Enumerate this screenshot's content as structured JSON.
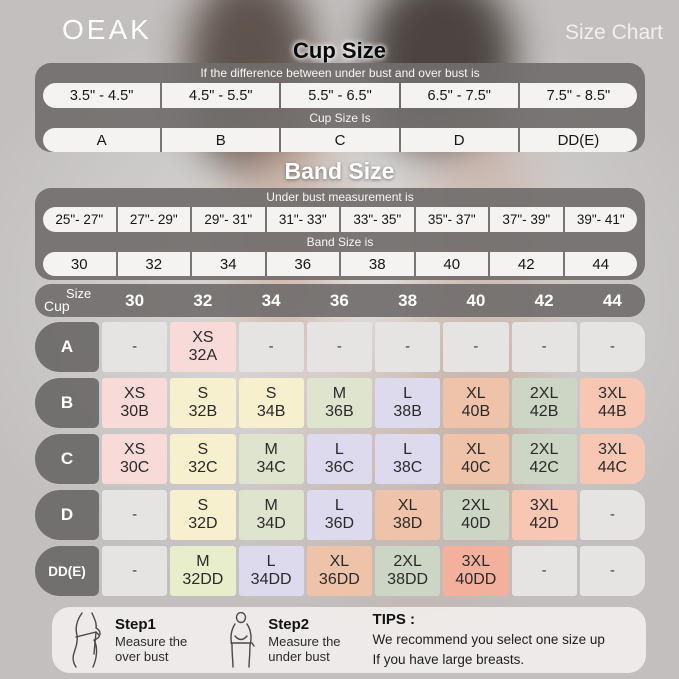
{
  "brand": {
    "logo": "OEAK"
  },
  "header": {
    "title": "Size Chart"
  },
  "cup_section": {
    "heading": "Cup Size",
    "condition_label": "If the  difference between under bust and over bust is",
    "ranges": [
      "3.5\" - 4.5\"",
      "4.5\" - 5.5\"",
      "5.5\" - 6.5\"",
      "6.5\" - 7.5\"",
      "7.5\" - 8.5\""
    ],
    "result_label": "Cup Size Is",
    "cups": [
      "A",
      "B",
      "C",
      "D",
      "DD(E)"
    ]
  },
  "band_section": {
    "heading": "Band Size",
    "condition_label": "Under bust measurement is",
    "ranges": [
      "25\"- 27\"",
      "27\"- 29\"",
      "29\"- 31\"",
      "31\"- 33\"",
      "33\"- 35\"",
      "35\"- 37\"",
      "37\"- 39\"",
      "39\"- 41\""
    ],
    "result_label": "Band Size is",
    "bands": [
      "30",
      "32",
      "34",
      "36",
      "38",
      "40",
      "42",
      "44"
    ]
  },
  "palette": {
    "gray": "#e6e4e3",
    "pink": "#f8dbd8",
    "cream": "#f6f0cf",
    "sage_light": "#dfe4cf",
    "sage_dark": "#cdd6c5",
    "lavender": "#dedaed",
    "peach": "#efc3a9",
    "salmon": "#f7c7b4",
    "salmon_deep": "#f3b19d",
    "palegreen": "#e8edcb",
    "panel_gray": "#716e6d",
    "accent_white": "#f3efee"
  },
  "matrix": {
    "corner_top": "Size",
    "corner_bottom": "Cup",
    "columns": [
      "30",
      "32",
      "34",
      "36",
      "38",
      "40",
      "42",
      "44"
    ],
    "rows": [
      {
        "cup": "A",
        "cells": [
          {
            "size": "-",
            "code": "",
            "bg": "#e6e4e3"
          },
          {
            "size": "XS",
            "code": "32A",
            "bg": "#f8dbd8"
          },
          {
            "size": "-",
            "code": "",
            "bg": "#e6e4e3"
          },
          {
            "size": "-",
            "code": "",
            "bg": "#e6e4e3"
          },
          {
            "size": "-",
            "code": "",
            "bg": "#e6e4e3"
          },
          {
            "size": "-",
            "code": "",
            "bg": "#e6e4e3"
          },
          {
            "size": "-",
            "code": "",
            "bg": "#e6e4e3"
          },
          {
            "size": "-",
            "code": "",
            "bg": "#e6e4e3"
          }
        ]
      },
      {
        "cup": "B",
        "cells": [
          {
            "size": "XS",
            "code": "30B",
            "bg": "#f8dbd8"
          },
          {
            "size": "S",
            "code": "32B",
            "bg": "#f6f0cf"
          },
          {
            "size": "S",
            "code": "34B",
            "bg": "#f6f0cf"
          },
          {
            "size": "M",
            "code": "36B",
            "bg": "#dfe4cf"
          },
          {
            "size": "L",
            "code": "38B",
            "bg": "#dedaed"
          },
          {
            "size": "XL",
            "code": "40B",
            "bg": "#efc3a9"
          },
          {
            "size": "2XL",
            "code": "42B",
            "bg": "#cdd6c5"
          },
          {
            "size": "3XL",
            "code": "44B",
            "bg": "#f7c7b4"
          }
        ]
      },
      {
        "cup": "C",
        "cells": [
          {
            "size": "XS",
            "code": "30C",
            "bg": "#f8dbd8"
          },
          {
            "size": "S",
            "code": "32C",
            "bg": "#f6f0cf"
          },
          {
            "size": "M",
            "code": "34C",
            "bg": "#dfe4cf"
          },
          {
            "size": "L",
            "code": "36C",
            "bg": "#dedaed"
          },
          {
            "size": "L",
            "code": "38C",
            "bg": "#dedaed"
          },
          {
            "size": "XL",
            "code": "40C",
            "bg": "#efc3a9"
          },
          {
            "size": "2XL",
            "code": "42C",
            "bg": "#cdd6c5"
          },
          {
            "size": "3XL",
            "code": "44C",
            "bg": "#f7c7b4"
          }
        ]
      },
      {
        "cup": "D",
        "cells": [
          {
            "size": "-",
            "code": "",
            "bg": "#e6e4e3"
          },
          {
            "size": "S",
            "code": "32D",
            "bg": "#f6f0cf"
          },
          {
            "size": "M",
            "code": "34D",
            "bg": "#dfe4cf"
          },
          {
            "size": "L",
            "code": "36D",
            "bg": "#dedaed"
          },
          {
            "size": "XL",
            "code": "38D",
            "bg": "#efc3a9"
          },
          {
            "size": "2XL",
            "code": "40D",
            "bg": "#cdd6c5"
          },
          {
            "size": "3XL",
            "code": "42D",
            "bg": "#f7c7b4"
          },
          {
            "size": "-",
            "code": "",
            "bg": "#e6e4e3"
          }
        ]
      },
      {
        "cup": "DD(E)",
        "cells": [
          {
            "size": "-",
            "code": "",
            "bg": "#e6e4e3"
          },
          {
            "size": "M",
            "code": "32DD",
            "bg": "#e8edcb"
          },
          {
            "size": "L",
            "code": "34DD",
            "bg": "#dedaed"
          },
          {
            "size": "XL",
            "code": "36DD",
            "bg": "#efc3a9"
          },
          {
            "size": "2XL",
            "code": "38DD",
            "bg": "#cdd6c5"
          },
          {
            "size": "3XL",
            "code": "40DD",
            "bg": "#f3b19d"
          },
          {
            "size": "-",
            "code": "",
            "bg": "#e6e4e3"
          },
          {
            "size": "-",
            "code": "",
            "bg": "#e6e4e3"
          }
        ]
      }
    ]
  },
  "footer": {
    "step1": {
      "title": "Step1",
      "line1": "Measure the",
      "line2": "over bust"
    },
    "step2": {
      "title": "Step2",
      "line1": "Measure the",
      "line2": "under bust"
    },
    "tips": {
      "title": "TIPS :",
      "line1": "We recommend you select one size up",
      "line2": "If you have large breasts."
    }
  },
  "chart_data": {
    "type": "table",
    "title": "Size Chart",
    "tables": [
      {
        "name": "cup-size-lookup",
        "condition": "If the  difference between under bust and over bust is",
        "ranges": [
          "3.5\" - 4.5\"",
          "4.5\" - 5.5\"",
          "5.5\" - 6.5\"",
          "6.5\" - 7.5\"",
          "7.5\" - 8.5\""
        ],
        "result_label": "Cup Size Is",
        "cup_sizes": [
          "A",
          "B",
          "C",
          "D",
          "DD(E)"
        ]
      },
      {
        "name": "band-size-lookup",
        "condition": "Under bust measurement is",
        "ranges": [
          "25\"- 27\"",
          "27\"- 29\"",
          "29\"- 31\"",
          "31\"- 33\"",
          "33\"- 35\"",
          "35\"- 37\"",
          "37\"- 39\"",
          "39\"- 41\""
        ],
        "result_label": "Band Size is",
        "band_sizes": [
          "30",
          "32",
          "34",
          "36",
          "38",
          "40",
          "42",
          "44"
        ]
      },
      {
        "name": "size-matrix",
        "columns": [
          "30",
          "32",
          "34",
          "36",
          "38",
          "40",
          "42",
          "44"
        ],
        "rows": [
          {
            "cup": "A",
            "values": [
              "-",
              "XS 32A",
              "-",
              "-",
              "-",
              "-",
              "-",
              "-"
            ]
          },
          {
            "cup": "B",
            "values": [
              "XS 30B",
              "S 32B",
              "S 34B",
              "M 36B",
              "L 38B",
              "XL 40B",
              "2XL 42B",
              "3XL 44B"
            ]
          },
          {
            "cup": "C",
            "values": [
              "XS 30C",
              "S 32C",
              "M 34C",
              "L 36C",
              "L 38C",
              "XL 40C",
              "2XL 42C",
              "3XL 44C"
            ]
          },
          {
            "cup": "D",
            "values": [
              "-",
              "S 32D",
              "M 34D",
              "L 36D",
              "XL 38D",
              "2XL 40D",
              "3XL 42D",
              "-"
            ]
          },
          {
            "cup": "DD(E)",
            "values": [
              "-",
              "M 32DD",
              "L 34DD",
              "XL 36DD",
              "2XL 38DD",
              "3XL 40DD",
              "-",
              "-"
            ]
          }
        ]
      }
    ]
  }
}
